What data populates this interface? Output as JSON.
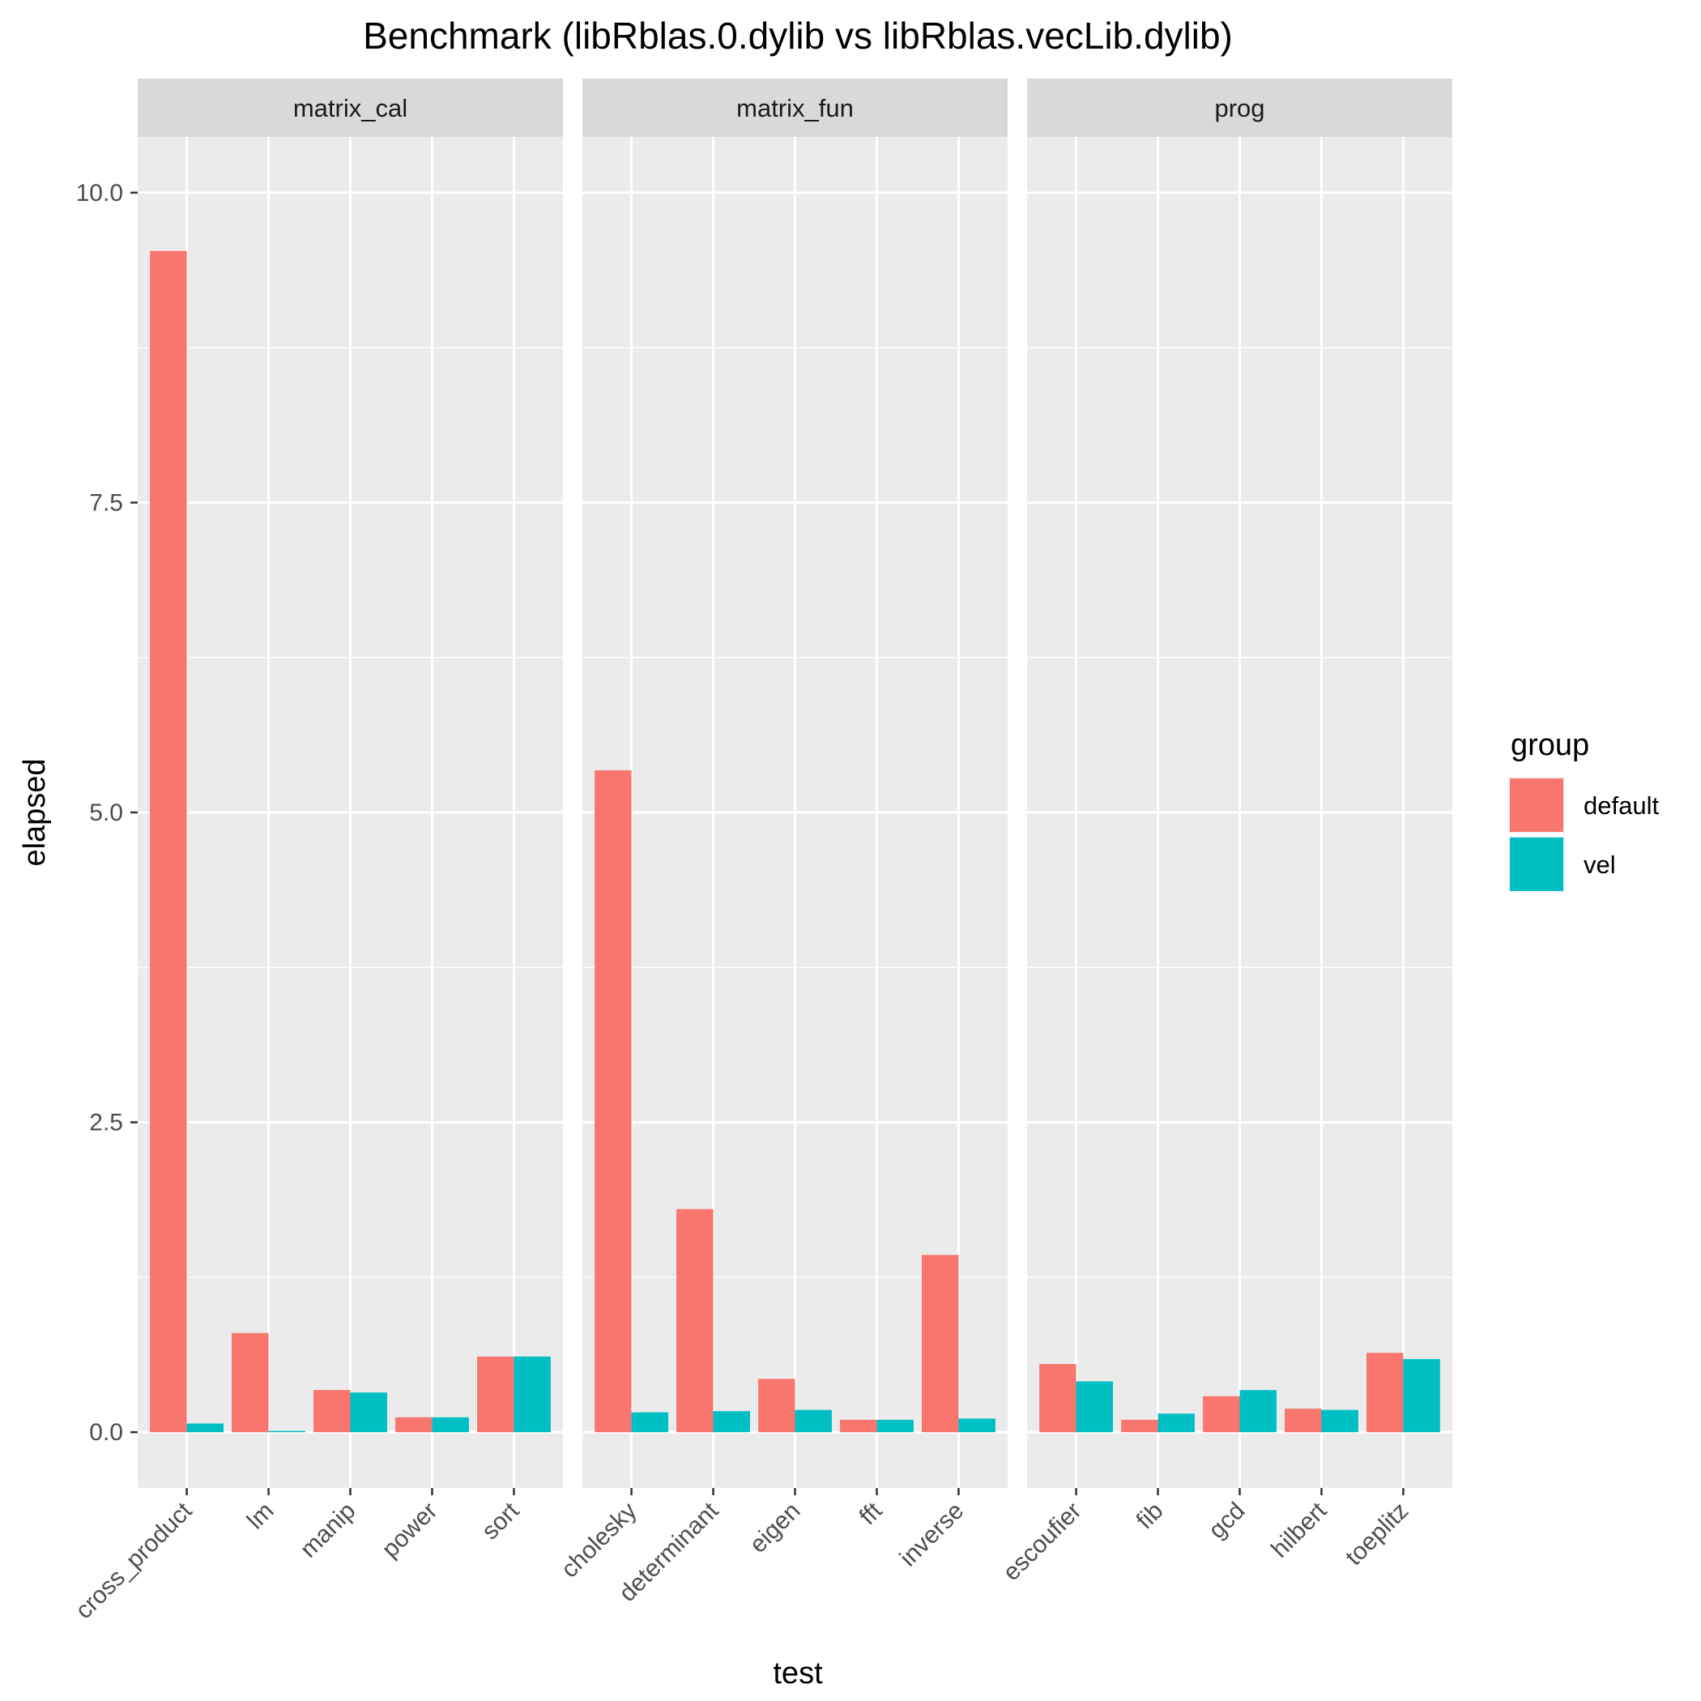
{
  "chart_data": {
    "type": "bar",
    "title": "Benchmark (libRblas.0.dylib vs libRblas.vecLib.dylib)",
    "xlabel": "test",
    "ylabel": "elapsed",
    "ylim": [
      -0.45,
      10.45
    ],
    "yticks": [
      0.0,
      2.5,
      5.0,
      7.5,
      10.0
    ],
    "ytick_labels": [
      "0.0",
      "2.5",
      "5.0",
      "7.5",
      "10.0"
    ],
    "legend": {
      "title": "group",
      "position": "right",
      "entries": [
        {
          "name": "default",
          "color": "#F8766D"
        },
        {
          "name": "vel",
          "color": "#00BFC4"
        }
      ]
    },
    "facets": [
      {
        "name": "matrix_cal",
        "categories": [
          "cross_product",
          "lm",
          "manip",
          "power",
          "sort"
        ],
        "series": [
          {
            "name": "default",
            "values": [
              9.53,
              0.8,
              0.34,
              0.12,
              0.61
            ]
          },
          {
            "name": "vel",
            "values": [
              0.07,
              0.01,
              0.32,
              0.12,
              0.61
            ]
          }
        ]
      },
      {
        "name": "matrix_fun",
        "categories": [
          "cholesky",
          "determinant",
          "eigen",
          "fft",
          "inverse"
        ],
        "series": [
          {
            "name": "default",
            "values": [
              5.34,
              1.8,
              0.43,
              0.1,
              1.43
            ]
          },
          {
            "name": "vel",
            "values": [
              0.16,
              0.17,
              0.18,
              0.1,
              0.11
            ]
          }
        ]
      },
      {
        "name": "prog",
        "categories": [
          "escoufier",
          "fib",
          "gcd",
          "hilbert",
          "toeplitz"
        ],
        "series": [
          {
            "name": "default",
            "values": [
              0.55,
              0.1,
              0.29,
              0.19,
              0.64
            ]
          },
          {
            "name": "vel",
            "values": [
              0.41,
              0.15,
              0.34,
              0.18,
              0.59
            ]
          }
        ]
      }
    ]
  }
}
